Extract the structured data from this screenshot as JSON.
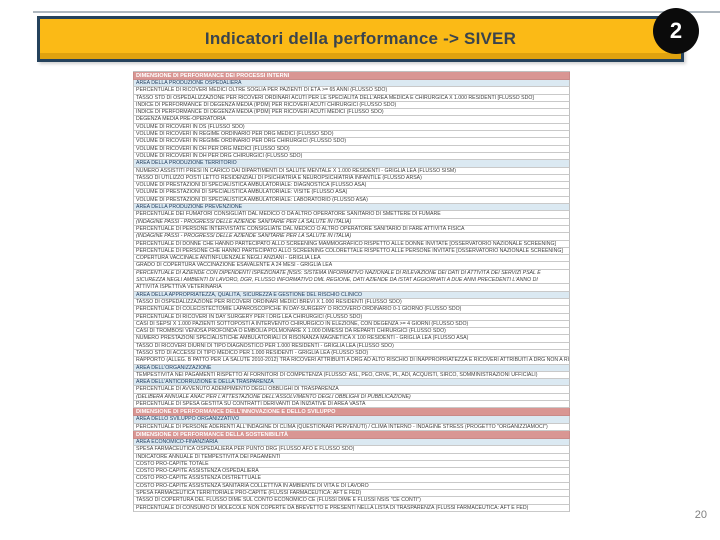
{
  "slide": {
    "title": "Indicatori della performance -> SIVER",
    "badge": "2",
    "page_number": "20"
  },
  "colors": {
    "title_bg": "#FBBA16",
    "title_border": "#25425C",
    "title_text": "#3A444D",
    "badge_bg": "#0B0B0B",
    "badge_text": "#FFFFFF",
    "dimension_header_bg": "#D99693",
    "dimension_header_text": "#FFFFFF",
    "area_header_bg": "#DBE9F2",
    "area_header_text": "#1F3B5C",
    "row_bg": "#FFFFFF",
    "row_text": "#3F3F3F",
    "row_border": "#C0C0C0"
  },
  "table": {
    "rows": [
      {
        "type": "dimension",
        "text": "DIMENSIONE DI PERFORMANCE DEI PROCESSI INTERNI"
      },
      {
        "type": "area",
        "text": "AREA DELLA PRODUZIONE OSPEDALIERA"
      },
      {
        "type": "item",
        "text": "PERCENTUALE DI RICOVERI MEDICI OLTRE SOGLIA PER PAZIENTI DI ETÀ >= 65 ANNI (FLUSSO SDO)"
      },
      {
        "type": "item",
        "text": "TASSO STD DI OSPEDALIZZAZIONE PER RICOVERI ORDINARI ACUTI PER LE SPECIALITÀ DELL'AREA MEDICA E CHIRURGICA X 1.000 RESIDENTI [FLUSSO SDO]"
      },
      {
        "type": "item",
        "text": "INDICE DI PERFORMANCE DI DEGENZA MEDIA (IPDM) PER RICOVERI ACUTI CHIRURGICI (FLUSSO SDO)"
      },
      {
        "type": "item",
        "text": "INDICE DI PERFORMANCE DI DEGENZA MEDIA (IPDM) PER RICOVERI ACUTI MEDICI (FLUSSO SDO)"
      },
      {
        "type": "item",
        "text": "DEGENZA MEDIA PRE-OPERATORIA"
      },
      {
        "type": "item",
        "text": "VOLUME DI RICOVERI IN DS (FLUSSO SDO)"
      },
      {
        "type": "item",
        "text": "VOLUME DI RICOVERI IN REGIME ORDINARIO PER DRG MEDICI (FLUSSO SDO)"
      },
      {
        "type": "item",
        "text": "VOLUME DI RICOVERI IN REGIME ORDINARIO PER DRG CHIRURGICI (FLUSSO SDO)"
      },
      {
        "type": "item",
        "text": "VOLUME DI RICOVERI IN DH PER DRG MEDICI (FLUSSO SDO)"
      },
      {
        "type": "item",
        "text": "VOLUME DI RICOVERI IN DH PER DRG CHIRURGICI (FLUSSO SDO)"
      },
      {
        "type": "area",
        "text": "AREA DELLA PRODUZIONE TERRITORIO"
      },
      {
        "type": "item",
        "text": "NUMERO ASSISTITI PRESI IN CARICO DAI DIPARTIMENTI DI SALUTE MENTALE X 1.000 RESIDENTI - GRIGLIA LEA (FLUSSO SISM)"
      },
      {
        "type": "item",
        "text": "TASSO DI UTILIZZO POSTI LETTO RESIDENZIALI DI PSICHIATRIA E NEUROPSICHIATRIA INFANTILE (FLUSSO ARSA)"
      },
      {
        "type": "item",
        "text": "VOLUME DI PRESTAZIONI DI SPECIALISTICA AMBULATORIALE: DIAGNOSTICA (FLUSSO ASA)"
      },
      {
        "type": "item",
        "text": "VOLUME DI PRESTAZIONI DI SPECIALISTICA AMBULATORIALE: VISITE (FLUSSO ASA)"
      },
      {
        "type": "item",
        "text": "VOLUME DI PRESTAZIONI DI SPECIALISTICA AMBULATORIALE: LABORATORIO (FLUSSO ASA)"
      },
      {
        "type": "area",
        "text": "AREA DELLA PRODUZIONE PREVENZIONE"
      },
      {
        "type": "item",
        "text": "PERCENTUALE DEI FUMATORI CONSIGLIATI DAL MEDICO O DA ALTRO OPERATORE SANITARIO DI SMETTERE DI FUMARE"
      },
      {
        "type": "item",
        "italic": true,
        "text": "(INDAGINE PASSI - PROGRESSI DELLE AZIENDE SANITARIE PER LA SALUTE IN ITALIA)"
      },
      {
        "type": "item",
        "text": "PERCENTUALE DI PERSONE INTERVISTATE CONSIGLIATE DAL MEDICO O ALTRO OPERATORE SANITARIO DI FARE ATTIVITÀ FISICA"
      },
      {
        "type": "item",
        "italic": true,
        "text": "(INDAGINE PASSI - PROGRESSI DELLE AZIENDE SANITARIE PER LA SALUTE IN ITALIA)"
      },
      {
        "type": "item",
        "text": "PERCENTUALE DI DONNE CHE HANNO PARTECIPATO ALLO SCREENING MAMMOGRAFICO RISPETTO ALLE DONNE INVITATE [OSSERVATORIO NAZIONALE SCREENING]"
      },
      {
        "type": "item",
        "text": "PERCENTUALE DI PERSONE CHE HANNO PARTECIPATO ALLO SCREENING COLORETTALE RISPETTO ALLE PERSONE INVITATE [OSSERVATORIO NAZIONALE SCREENING]"
      },
      {
        "type": "item",
        "text": "COPERTURA VACCINALE ANTINFLUENZALE NEGLI ANZIANI - GRIGLIA LEA"
      },
      {
        "type": "item",
        "text": "GRADO DI COPERTURA VACCINAZIONE ESAVALENTE A 24 MESI - GRIGLIA LEA"
      },
      {
        "type": "item",
        "italic": true,
        "twoLine": true,
        "text": "PERCENTUALE DI AZIENDE CON DIPENDENTI ISPEZIONATE [NSIS: SISTEMA INFORMATIVO NAZIONALE DI RILEVAZIONE DEI DATI DI ATTIVITÀ DEI SERVIZI PSAL E SICUREZZA NEGLI AMBIENTI DI LAVORO, DGR, FLUSSO INFORMATIVO DML REGIONE, DATI AZIENDE DA ISTAT AGGIORNATI A DUE ANNI PRECEDENTI L'ANNO DI RIFERIMENTO]"
      },
      {
        "type": "item",
        "text": "ATTIVITÀ ISPETTIVA VETERINARIA"
      },
      {
        "type": "area",
        "text": "AREA DELLA APPROPRIATEZZA, QUALITÀ, SICUREZZA E GESTIONE DEL RISCHIO CLINICO"
      },
      {
        "type": "item",
        "text": "TASSO DI OSPEDALIZZAZIONE PER RICOVERI ORDINARI MEDICI BREVI X 1.000 RESIDENTI (FLUSSO SDO)"
      },
      {
        "type": "item",
        "text": "PERCENTUALE DI COLECISTECTOMIE LAPAROSCOPICHE IN DAY-SURGERY O RICOVERO ORDINARIO 0-1 GIORNO (FLUSSO SDO)"
      },
      {
        "type": "item",
        "text": "PERCENTUALE DI RICOVERI IN DAY SURGERY PER I DRG LEA CHIRURGICI (FLUSSO SDO)"
      },
      {
        "type": "item",
        "text": "CASI DI SEPSI X 1.000 PAZIENTI SOTTOPOSTI A INTERVENTO CHIRURGICO IN ELEZIONE, CON DEGENZA >= 4 GIORNI (FLUSSO SDO)"
      },
      {
        "type": "item",
        "text": "CASI DI TROMBOSI VENOSA PROFONDA O EMBOLIA POLMONARE X 1.000 DIMESSI DA REPARTI CHIRURGICI (FLUSSO SDO)"
      },
      {
        "type": "item",
        "text": "NUMERO PRESTAZIONI SPECIALISTICHE AMBULATORIALI DI RISONANZA MAGNETICA X 100 RESIDENTI - GRIGLIA LEA (FLUSSO ASA)"
      },
      {
        "type": "item",
        "text": "TASSO DI RICOVERI DIURNI DI TIPO DIAGNOSTICO PER 1.000 RESIDENTI - GRIGLIA LEA (FLUSSO SDO)"
      },
      {
        "type": "item",
        "text": "TASSO STD DI ACCESSI DI TIPO MEDICO PER 1.000 RESIDENTI - GRIGLIA LEA (FLUSSO SDO)"
      },
      {
        "type": "item",
        "text": "RAPPORTO (ALLEG. B PATTO PER LA SALUTE 2010-2012) TRA RICOVERI ATTRIBUITI A DRG AD ALTO RISCHIO DI INAPPROPRIATEZZA E RICOVERI ATTRIBUITI A DRG NON A RISCHIO DI INAPPROPRIATEZZA IN REGIME ORDINARIO - GRIGLIA LEA (FLUSSO SDO)"
      },
      {
        "type": "area",
        "text": "AREA DELL'ORGANIZZAZIONE"
      },
      {
        "type": "item",
        "text": "TEMPESTIVITÀ NEI PAGAMENTI RISPETTO AI FORNITORI DI COMPETENZA (FLUSSO: ASL, PEO, CRVE, PL, ADI, ACQUISTI, SIRCO, SOMMINISTRAZIONI UFFICIALI)"
      },
      {
        "type": "area",
        "text": "AREA DELL'ANTICORRUZIONE E DELLA TRASPARENZA"
      },
      {
        "type": "item",
        "text": "PERCENTUALE DI AVVENUTO ADEMPIMENTO DEGLI OBBLIGHI DI TRASPARENZA"
      },
      {
        "type": "item",
        "italic": true,
        "text": "(DELIBERA ANNUALE ANAC PER L'ATTESTAZIONE DELL'ASSOLVIMENTO DEGLI OBBLIGHI DI PUBBLICAZIONE)"
      },
      {
        "type": "item",
        "text": "PERCENTUALE DI SPESA GESTITA SU CONTRATTI DERIVANTI DA INIZIATIVE DI AREA VASTA"
      },
      {
        "type": "dimension",
        "text": "DIMENSIONE DI PERFORMANCE DELL'INNOVAZIONE E DELLO SVILUPPO"
      },
      {
        "type": "area",
        "text": "AREA DELLO SVILUPPO ORGANIZZATIVO"
      },
      {
        "type": "item",
        "text": "PERCENTUALE DI PERSONE ADERENTI ALL'INDAGINE DI CLIMA (QUESTIONARI PERVENUTI) / CLIMA INTERNO - INDAGINE STRESS (PROGETTO \"ORGANIZZIAMOCI\")"
      },
      {
        "type": "dimension",
        "text": "DIMENSIONE DI PERFORMANCE DELLA SOSTENIBILITÀ"
      },
      {
        "type": "area",
        "text": "AREA ECONOMICO-FINANZIARIA"
      },
      {
        "type": "item",
        "text": "SPESA FARMACEUTICA OSPEDALIERA PER PUNTO DRG (FLUSSO AFO E FLUSSO SDO)"
      },
      {
        "type": "item",
        "text": "INDICATORE ANNUALE DI TEMPESTIVITÀ DEI PAGAMENTI"
      },
      {
        "type": "item",
        "text": "COSTO PRO-CAPITE TOTALE"
      },
      {
        "type": "item",
        "text": "COSTO PRO-CAPITE ASSISTENZA OSPEDALIERA"
      },
      {
        "type": "item",
        "text": "COSTO PRO-CAPITE ASSISTENZA DISTRETTUALE"
      },
      {
        "type": "item",
        "text": "COSTO PRO-CAPITE ASSISTENZA SANITARIA COLLETTIVA IN AMBIENTE DI VITA E DI LAVORO"
      },
      {
        "type": "item",
        "text": "SPESA FARMACEUTICA TERRITORIALE PRO-CAPITE (FLUSSI FARMACEUTICA: AFT E FED)"
      },
      {
        "type": "item",
        "text": "TASSO DI COPERTURA DEL FLUSSO DIME SUL CONTO ECONOMICO CE (FLUSSI DIME E FLUSSI NSIS \"CE CONTI\")"
      },
      {
        "type": "item",
        "text": "PERCENTUALE DI CONSUMO DI MOLECOLE NON COPERTE DA BREVETTO E PRESENTI NELLA LISTA DI TRASPARENZA (FLUSSI FARMACEUTICA: AFT E FED)"
      }
    ]
  }
}
